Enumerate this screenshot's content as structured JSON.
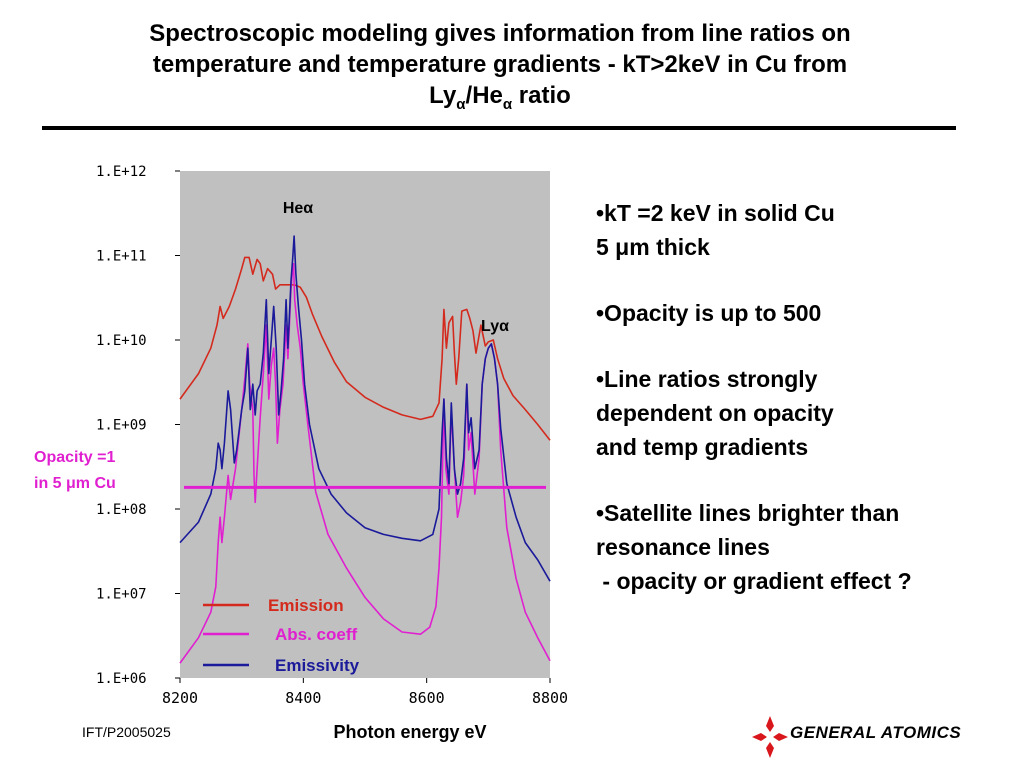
{
  "slide": {
    "title_part1": "Spectroscopic  modeling gives  information from line ratios on",
    "title_part2": "temperature and temperature gradients - kT>2keV in Cu from",
    "title_ly": "Ly",
    "title_alpha": "α",
    "title_he": "He",
    "title_ratio": " ratio",
    "footer_id": "IFT/P2005025",
    "logo_text": "GENERAL ATOMICS",
    "logo_color": "#d9161c"
  },
  "bullets": [
    {
      "line1": "•kT =2 keV in solid Cu",
      "line2": "5 μm thick"
    },
    {
      "line1": "•Opacity is up to 500"
    },
    {
      "line1": "•Line ratios strongly",
      "line2": "dependent on opacity",
      "line3": "and temp gradients"
    },
    {
      "line1": "•Satellite lines brighter than",
      "line2": "resonance lines",
      "line3": " - opacity or gradient effect ?"
    }
  ],
  "chart_data": {
    "type": "line",
    "xlabel": "Photon energy eV",
    "xlim": [
      8200,
      8800
    ],
    "x_ticks": [
      "8200",
      "8400",
      "8600",
      "8800"
    ],
    "ylim_log10": [
      6,
      12
    ],
    "y_ticks": [
      "1.E+06",
      "1.E+07",
      "1.E+08",
      "1.E+09",
      "1.E+10",
      "1.E+11",
      "1.E+12"
    ],
    "plot_background": "#c0c0c0",
    "annotations": {
      "he_alpha": "Heα",
      "ly_alpha": "Lyα",
      "opacity_line1": "Opacity =1",
      "opacity_line2": "in 5 μm Cu"
    },
    "opacity_level": 180000000.0,
    "opacity_color": "#e020d0",
    "legend": [
      {
        "name": "Emission",
        "color": "#d42a1e"
      },
      {
        "name": "Abs. coeff",
        "color": "#e020d0"
      },
      {
        "name": "Emissivity",
        "color": "#1a1a9a"
      }
    ],
    "series": [
      {
        "name": "Emission",
        "color": "#d42a1e",
        "points": [
          [
            8200,
            2000000000.0
          ],
          [
            8230,
            4000000000.0
          ],
          [
            8250,
            8000000000.0
          ],
          [
            8260,
            15000000000.0
          ],
          [
            8265,
            25000000000.0
          ],
          [
            8270,
            18000000000.0
          ],
          [
            8280,
            25000000000.0
          ],
          [
            8290,
            40000000000.0
          ],
          [
            8300,
            70000000000.0
          ],
          [
            8305,
            95000000000.0
          ],
          [
            8312,
            95000000000.0
          ],
          [
            8318,
            60000000000.0
          ],
          [
            8325,
            90000000000.0
          ],
          [
            8330,
            80000000000.0
          ],
          [
            8335,
            50000000000.0
          ],
          [
            8342,
            70000000000.0
          ],
          [
            8350,
            60000000000.0
          ],
          [
            8355,
            40000000000.0
          ],
          [
            8362,
            45000000000.0
          ],
          [
            8372,
            45000000000.0
          ],
          [
            8385,
            45000000000.0
          ],
          [
            8395,
            42000000000.0
          ],
          [
            8405,
            32000000000.0
          ],
          [
            8415,
            20000000000.0
          ],
          [
            8430,
            11000000000.0
          ],
          [
            8450,
            5500000000.0
          ],
          [
            8470,
            3200000000.0
          ],
          [
            8500,
            2100000000.0
          ],
          [
            8530,
            1600000000.0
          ],
          [
            8560,
            1300000000.0
          ],
          [
            8590,
            1150000000.0
          ],
          [
            8610,
            1250000000.0
          ],
          [
            8620,
            1800000000.0
          ],
          [
            8625,
            6000000000.0
          ],
          [
            8628,
            23000000000.0
          ],
          [
            8632,
            8000000000.0
          ],
          [
            8636,
            16000000000.0
          ],
          [
            8642,
            19000000000.0
          ],
          [
            8645,
            7000000000.0
          ],
          [
            8648,
            3000000000.0
          ],
          [
            8652,
            6000000000.0
          ],
          [
            8657,
            22000000000.0
          ],
          [
            8665,
            23000000000.0
          ],
          [
            8670,
            18000000000.0
          ],
          [
            8675,
            13000000000.0
          ],
          [
            8680,
            7000000000.0
          ],
          [
            8688,
            15000000000.0
          ],
          [
            8695,
            8500000000.0
          ],
          [
            8700,
            9500000000.0
          ],
          [
            8708,
            10000000000.0
          ],
          [
            8715,
            6000000000.0
          ],
          [
            8725,
            3500000000.0
          ],
          [
            8740,
            2200000000.0
          ],
          [
            8760,
            1500000000.0
          ],
          [
            8780,
            1000000000.0
          ],
          [
            8800,
            650000000.0
          ]
        ]
      },
      {
        "name": "Abs. coeff",
        "color": "#e020d0",
        "points": [
          [
            8200,
            1500000.0
          ],
          [
            8230,
            3000000.0
          ],
          [
            8250,
            6000000.0
          ],
          [
            8258,
            12000000.0
          ],
          [
            8262,
            40000000.0
          ],
          [
            8265,
            80000000.0
          ],
          [
            8268,
            40000000.0
          ],
          [
            8272,
            80000000.0
          ],
          [
            8278,
            250000000.0
          ],
          [
            8282,
            130000000.0
          ],
          [
            8290,
            300000000.0
          ],
          [
            8300,
            1500000000.0
          ],
          [
            8305,
            3500000000.0
          ],
          [
            8310,
            9000000000.0
          ],
          [
            8313,
            3000000000.0
          ],
          [
            8318,
            1500000000.0
          ],
          [
            8320,
            250000000.0
          ],
          [
            8322,
            120000000.0
          ],
          [
            8325,
            300000000.0
          ],
          [
            8330,
            1200000000.0
          ],
          [
            8335,
            4000000000.0
          ],
          [
            8340,
            15000000000.0
          ],
          [
            8344,
            2000000000.0
          ],
          [
            8348,
            5000000000.0
          ],
          [
            8352,
            8000000000.0
          ],
          [
            8355,
            3000000000.0
          ],
          [
            8358,
            600000000.0
          ],
          [
            8362,
            1500000000.0
          ],
          [
            8367,
            3000000000.0
          ],
          [
            8372,
            15000000000.0
          ],
          [
            8375,
            6000000000.0
          ],
          [
            8380,
            40000000000.0
          ],
          [
            8382,
            60000000000.0
          ],
          [
            8384,
            80000000000.0
          ],
          [
            8386,
            30000000000.0
          ],
          [
            8390,
            15000000000.0
          ],
          [
            8395,
            8000000000.0
          ],
          [
            8400,
            3000000000.0
          ],
          [
            8408,
            900000000.0
          ],
          [
            8420,
            160000000.0
          ],
          [
            8440,
            50000000.0
          ],
          [
            8470,
            20000000.0
          ],
          [
            8500,
            9000000.0
          ],
          [
            8530,
            5000000.0
          ],
          [
            8560,
            3500000.0
          ],
          [
            8590,
            3300000.0
          ],
          [
            8605,
            4000000.0
          ],
          [
            8615,
            7000000.0
          ],
          [
            8620,
            20000000.0
          ],
          [
            8624,
            80000000.0
          ],
          [
            8628,
            2000000000.0
          ],
          [
            8631,
            300000000.0
          ],
          [
            8636,
            150000000.0
          ],
          [
            8640,
            1500000000.0
          ],
          [
            8645,
            300000000.0
          ],
          [
            8650,
            80000000.0
          ],
          [
            8655,
            120000000.0
          ],
          [
            8660,
            250000000.0
          ],
          [
            8665,
            3000000000.0
          ],
          [
            8668,
            500000000.0
          ],
          [
            8672,
            800000000.0
          ],
          [
            8678,
            150000000.0
          ],
          [
            8685,
            400000000.0
          ],
          [
            8690,
            3000000000.0
          ],
          [
            8695,
            6000000000.0
          ],
          [
            8700,
            8000000000.0
          ],
          [
            8705,
            9000000000.0
          ],
          [
            8710,
            6000000000.0
          ],
          [
            8715,
            3000000000.0
          ],
          [
            8720,
            500000000.0
          ],
          [
            8730,
            60000000.0
          ],
          [
            8745,
            15000000.0
          ],
          [
            8760,
            6000000.0
          ],
          [
            8780,
            3000000.0
          ],
          [
            8800,
            1600000.0
          ]
        ]
      },
      {
        "name": "Emissivity",
        "color": "#1a1a9a",
        "points": [
          [
            8200,
            40000000.0
          ],
          [
            8230,
            70000000.0
          ],
          [
            8250,
            150000000.0
          ],
          [
            8258,
            300000000.0
          ],
          [
            8262,
            600000000.0
          ],
          [
            8265,
            500000000.0
          ],
          [
            8268,
            300000000.0
          ],
          [
            8272,
            600000000.0
          ],
          [
            8278,
            2500000000.0
          ],
          [
            8282,
            1500000000.0
          ],
          [
            8288,
            350000000.0
          ],
          [
            8292,
            500000000.0
          ],
          [
            8300,
            1500000000.0
          ],
          [
            8305,
            2500000000.0
          ],
          [
            8310,
            8000000000.0
          ],
          [
            8314,
            1500000000.0
          ],
          [
            8318,
            3000000000.0
          ],
          [
            8322,
            1300000000.0
          ],
          [
            8325,
            2500000000.0
          ],
          [
            8330,
            3000000000.0
          ],
          [
            8335,
            7000000000.0
          ],
          [
            8340,
            30000000000.0
          ],
          [
            8344,
            4000000000.0
          ],
          [
            8348,
            10000000000.0
          ],
          [
            8352,
            25000000000.0
          ],
          [
            8356,
            8000000000.0
          ],
          [
            8360,
            1300000000.0
          ],
          [
            8364,
            2500000000.0
          ],
          [
            8368,
            6000000000.0
          ],
          [
            8372,
            30000000000.0
          ],
          [
            8375,
            8000000000.0
          ],
          [
            8380,
            50000000000.0
          ],
          [
            8383,
            100000000000.0
          ],
          [
            8385,
            170000000000.0
          ],
          [
            8388,
            60000000000.0
          ],
          [
            8392,
            25000000000.0
          ],
          [
            8397,
            10000000000.0
          ],
          [
            8402,
            3000000000.0
          ],
          [
            8410,
            1000000000.0
          ],
          [
            8425,
            300000000.0
          ],
          [
            8445,
            150000000.0
          ],
          [
            8470,
            90000000.0
          ],
          [
            8500,
            60000000.0
          ],
          [
            8530,
            50000000.0
          ],
          [
            8560,
            45000000.0
          ],
          [
            8590,
            42000000.0
          ],
          [
            8610,
            50000000.0
          ],
          [
            8620,
            100000000.0
          ],
          [
            8625,
            800000000.0
          ],
          [
            8628,
            2000000000.0
          ],
          [
            8632,
            400000000.0
          ],
          [
            8636,
            200000000.0
          ],
          [
            8640,
            1800000000.0
          ],
          [
            8645,
            300000000.0
          ],
          [
            8650,
            150000000.0
          ],
          [
            8655,
            200000000.0
          ],
          [
            8660,
            400000000.0
          ],
          [
            8665,
            3000000000.0
          ],
          [
            8668,
            800000000.0
          ],
          [
            8672,
            1200000000.0
          ],
          [
            8678,
            300000000.0
          ],
          [
            8685,
            500000000.0
          ],
          [
            8690,
            3000000000.0
          ],
          [
            8695,
            6000000000.0
          ],
          [
            8700,
            8000000000.0
          ],
          [
            8705,
            9000000000.0
          ],
          [
            8710,
            6000000000.0
          ],
          [
            8715,
            3000000000.0
          ],
          [
            8720,
            900000000.0
          ],
          [
            8730,
            200000000.0
          ],
          [
            8745,
            80000000.0
          ],
          [
            8760,
            40000000.0
          ],
          [
            8780,
            25000000.0
          ],
          [
            8800,
            14000000.0
          ]
        ]
      }
    ]
  }
}
